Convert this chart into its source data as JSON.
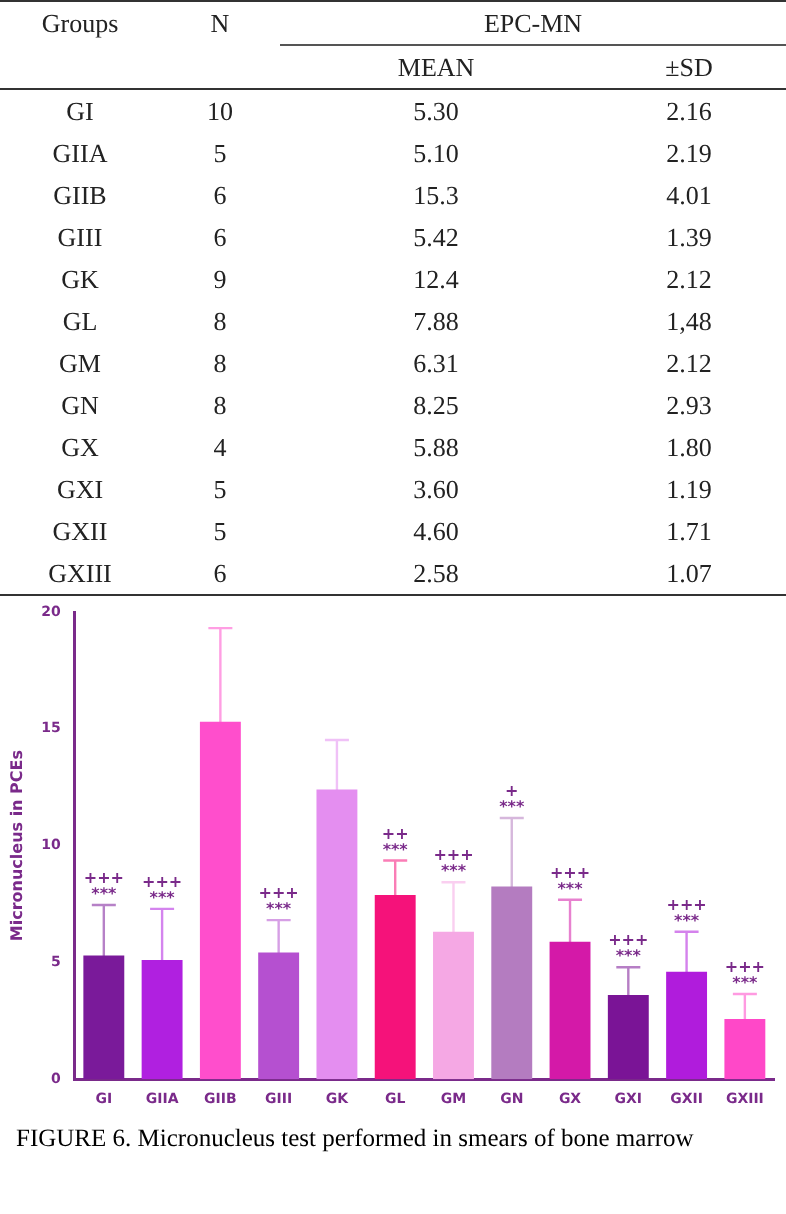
{
  "chart_data": [
    {
      "type": "other",
      "data_labels": true,
      "xlabel": "Groups",
      "title": "EPC-MN",
      "categories": [
        "GI",
        "GIIA",
        "GIIB",
        "GIII",
        "GK",
        "GL",
        "GM",
        "GN",
        "GX",
        "GXI",
        "GXII",
        "GXIII"
      ],
      "series": [
        {
          "name": "N",
          "values": [
            10,
            5,
            6,
            6,
            9,
            8,
            8,
            8,
            4,
            5,
            5,
            6
          ]
        },
        {
          "name": "MEAN",
          "values": [
            5.3,
            5.1,
            15.3,
            5.42,
            12.4,
            7.88,
            6.31,
            8.25,
            5.88,
            3.6,
            4.6,
            2.58
          ],
          "value_labels": [
            "5.30",
            "5.10",
            "15.3",
            "5.42",
            "12.4",
            "7.88",
            "6.31",
            "8.25",
            "5.88",
            "3.60",
            "4.60",
            "2.58"
          ]
        },
        {
          "name": "±SD",
          "values": [
            2.16,
            2.19,
            4.01,
            1.39,
            2.12,
            1.48,
            2.12,
            2.93,
            1.8,
            1.19,
            1.71,
            1.07
          ],
          "value_labels": [
            "2.16",
            "2.19",
            "4.01",
            "1.39",
            "2.12",
            "1,48",
            "2.12",
            "2.93",
            "1.80",
            "1.19",
            "1.71",
            "1.07"
          ]
        }
      ]
    },
    {
      "type": "bar",
      "ylabel": "Micronucleus in PCEs",
      "categories": [
        "GI",
        "GIIA",
        "GIIB",
        "GIII",
        "GK",
        "GL",
        "GM",
        "GN",
        "GX",
        "GXI",
        "GXII",
        "GXIII"
      ],
      "values": [
        5.3,
        5.1,
        15.3,
        5.42,
        12.4,
        7.88,
        6.31,
        8.25,
        5.88,
        3.6,
        4.6,
        2.58
      ],
      "errors": [
        2.16,
        2.19,
        4.01,
        1.39,
        2.12,
        1.48,
        2.12,
        2.93,
        1.8,
        1.19,
        1.71,
        1.07
      ],
      "colors": [
        "#7a1a9a",
        "#b020e0",
        "#ff4ecc",
        "#b550d0",
        "#e48ef0",
        "#f5127a",
        "#f5a8e4",
        "#b47cc0",
        "#d419a8",
        "#7a1496",
        "#b01cdc",
        "#ff48c8"
      ],
      "ylim": [
        0,
        20
      ],
      "yticks": [
        0,
        5,
        10,
        15,
        20
      ],
      "grid": false,
      "legend": false,
      "annotations": [
        {
          "text": "+++\n***",
          "x": "GI",
          "y": 7.46
        },
        {
          "text": "+++\n***",
          "x": "GIIA",
          "y": 7.29
        },
        {
          "text": "+++\n***",
          "x": "GIII",
          "y": 6.81
        },
        {
          "text": "++\n***",
          "x": "GL",
          "y": 9.36
        },
        {
          "text": "+++\n***",
          "x": "GM",
          "y": 8.43
        },
        {
          "text": "+\n***",
          "x": "GN",
          "y": 11.18
        },
        {
          "text": "+++\n***",
          "x": "GX",
          "y": 7.68
        },
        {
          "text": "+++\n***",
          "x": "GXI",
          "y": 4.79
        },
        {
          "text": "+++\n***",
          "x": "GXII",
          "y": 6.31
        },
        {
          "text": "+++\n***",
          "x": "GXIII",
          "y": 3.65
        },
        "FIGURE 6. Micronucleus test performed in smears of bone marrow"
      ]
    }
  ]
}
